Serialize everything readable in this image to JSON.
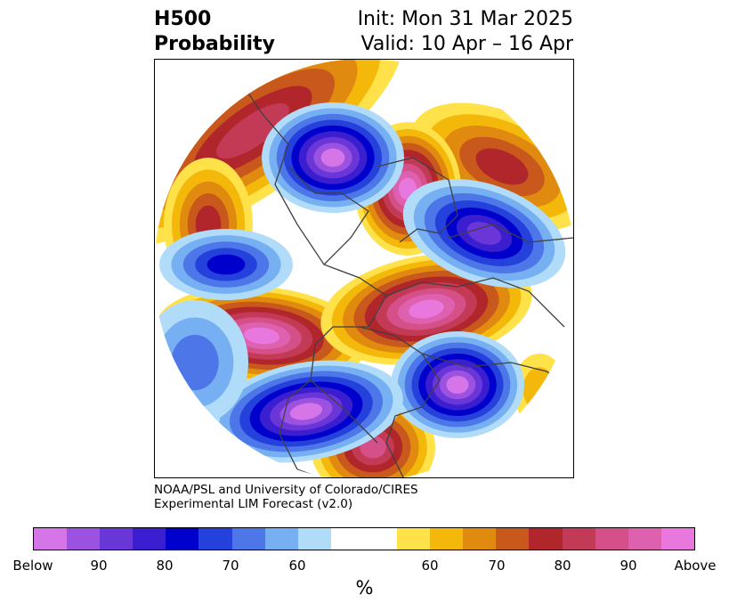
{
  "title": {
    "left_line1": "H500",
    "left_line2": "Probability",
    "right_line1": "Init: Mon 31 Mar 2025",
    "right_line2": "Valid: 10 Apr – 16 Apr"
  },
  "credit": {
    "line1": "NOAA/PSL and University of Colorado/CIRES",
    "line2": "Experimental LIM Forecast (v2.0)"
  },
  "colorbar": {
    "unit": "%",
    "colors": [
      "#d675e8",
      "#9c52e0",
      "#6b36d8",
      "#3b1ed0",
      "#0000cc",
      "#2541dc",
      "#4d77e8",
      "#76b0f2",
      "#b0dcfa",
      "#ffffff",
      "#ffffff",
      "#ffe24a",
      "#f4b80a",
      "#e08a10",
      "#c8581c",
      "#b0262a",
      "#c23a55",
      "#d55088",
      "#de61b0",
      "#e877de"
    ],
    "labels": [
      "Below",
      "90",
      "80",
      "70",
      "60",
      "60",
      "70",
      "80",
      "90",
      "Above"
    ]
  },
  "map": {
    "projection": "north polar stereographic",
    "palette": {
      "below": [
        "#d675e8",
        "#9c52e0",
        "#6b36d8",
        "#3b1ed0",
        "#0000cc",
        "#2541dc",
        "#4d77e8",
        "#76b0f2",
        "#b0dcfa"
      ],
      "above": [
        "#ffe24a",
        "#f4b80a",
        "#e08a10",
        "#c8581c",
        "#b0262a",
        "#c23a55",
        "#d55088",
        "#de61b0",
        "#e877de"
      ],
      "coastline": "#404040"
    }
  }
}
